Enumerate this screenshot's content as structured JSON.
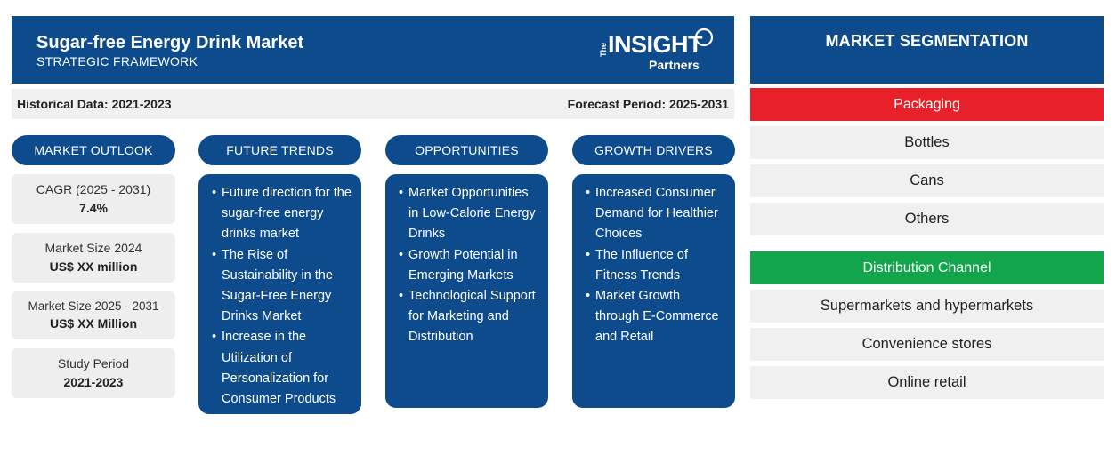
{
  "header": {
    "title": "Sugar-free Energy Drink Market",
    "subtitle": "STRATEGIC FRAMEWORK",
    "logo": {
      "the": "The",
      "word": "INSIGHT",
      "partners": "Partners"
    }
  },
  "period": {
    "historical": "Historical Data: 2021-2023",
    "forecast": "Forecast Period: 2025-2031"
  },
  "columns": {
    "outlook": "MARKET OUTLOOK",
    "trends": "FUTURE TRENDS",
    "opportunities": "OPPORTUNITIES",
    "drivers": "GROWTH DRIVERS"
  },
  "outlook": [
    {
      "label": "CAGR (2025 - 2031)",
      "value": "7.4%"
    },
    {
      "label": "Market Size 2024",
      "value": "US$ XX million"
    },
    {
      "label": "Market Size 2025 - 2031",
      "value": "US$ XX Million"
    },
    {
      "label": "Study Period",
      "value": "2021-2023"
    }
  ],
  "trends": [
    "Future direction for the sugar-free energy drinks market",
    "The Rise of Sustainability in the Sugar-Free Energy Drinks Market",
    "Increase in the Utilization of Personalization for Consumer Products"
  ],
  "opportunities": [
    "Market Opportunities in Low-Calorie Energy Drinks",
    "Growth Potential in Emerging Markets",
    "Technological Support for Marketing and Distribution"
  ],
  "drivers": [
    "Increased Consumer Demand for Healthier Choices",
    "The Influence of Fitness Trends",
    "Market Growth through E-Commerce and Retail"
  ],
  "segmentation": {
    "title": "MARKET SEGMENTATION",
    "packaging": {
      "label": "Packaging",
      "color": "#e8202a",
      "items": [
        "Bottles",
        "Cans",
        "Others"
      ]
    },
    "distribution": {
      "label": "Distribution Channel",
      "color": "#12a54b",
      "items": [
        "Supermarkets and hypermarkets",
        "Convenience stores",
        "Online retail"
      ]
    }
  },
  "colors": {
    "navy": "#0d4b8c",
    "light_gray": "#f0f0f0"
  }
}
